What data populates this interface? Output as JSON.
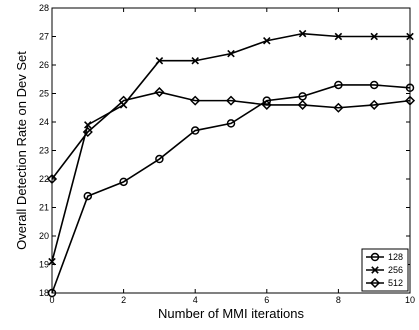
{
  "chart_data": {
    "type": "line",
    "xlabel": "Number of MMI iterations",
    "ylabel": "Overall Detection Rate on Dev Set",
    "xlim": [
      0,
      10
    ],
    "ylim": [
      18,
      28
    ],
    "x_ticks": [
      0,
      2,
      4,
      6,
      8,
      10
    ],
    "y_ticks": [
      18,
      19,
      20,
      21,
      22,
      23,
      24,
      25,
      26,
      27,
      28
    ],
    "grid": false,
    "legend": "bottom-right",
    "x": [
      0,
      1,
      2,
      3,
      4,
      5,
      6,
      7,
      8,
      9,
      10
    ],
    "series": [
      {
        "name": "128",
        "marker": "circle",
        "values": [
          18.0,
          21.4,
          21.9,
          22.7,
          23.7,
          23.95,
          24.75,
          24.9,
          25.3,
          25.3,
          25.2
        ]
      },
      {
        "name": "256",
        "marker": "x",
        "values": [
          19.1,
          23.9,
          24.6,
          26.15,
          26.15,
          26.4,
          26.85,
          27.1,
          27.0,
          27.0,
          27.0
        ]
      },
      {
        "name": "512",
        "marker": "diamond",
        "values": [
          22.0,
          23.65,
          24.75,
          25.05,
          24.75,
          24.75,
          24.6,
          24.6,
          24.5,
          24.6,
          24.75
        ]
      }
    ]
  }
}
